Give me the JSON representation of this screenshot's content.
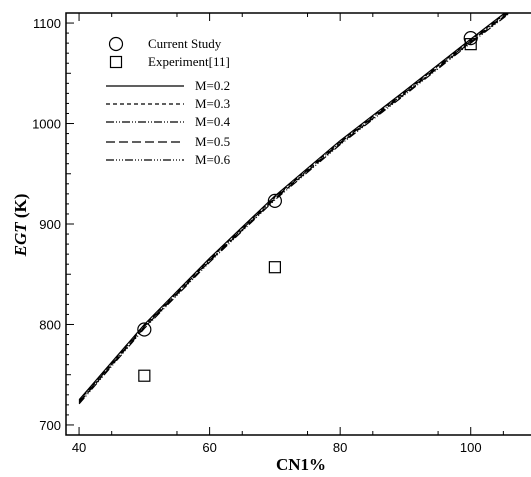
{
  "chart_data": {
    "type": "scatter",
    "xlabel": "CN1%",
    "ylabel_italic": "EGT",
    "ylabel_unit": " (K)",
    "xlim": [
      38,
      110
    ],
    "ylim": [
      690,
      1110
    ],
    "x_ticks": [
      40,
      60,
      80,
      100
    ],
    "y_ticks": [
      700,
      800,
      900,
      1000,
      1100
    ],
    "x_tick_labels": [
      "40",
      "60",
      "80",
      "100"
    ],
    "y_tick_labels": [
      "700",
      "800",
      "900",
      "1000",
      "1100"
    ],
    "grid": false,
    "legend_position": "top-left",
    "series": [
      {
        "name": "Current Study",
        "kind": "marker",
        "marker": "circle",
        "x": [
          50,
          70,
          100
        ],
        "y": [
          795,
          923,
          1085
        ]
      },
      {
        "name": "Experiment[11]",
        "kind": "marker",
        "marker": "square",
        "x": [
          50,
          70,
          100
        ],
        "y": [
          749,
          857,
          1079
        ]
      },
      {
        "name": "M=0.2",
        "kind": "line",
        "dash": "solid",
        "x": [
          40,
          50,
          60,
          70,
          80,
          90,
          100,
          106
        ],
        "y": [
          725,
          800,
          866,
          928,
          983,
          1033,
          1084,
          1114
        ]
      },
      {
        "name": "M=0.3",
        "kind": "line",
        "dash": "4,3",
        "x": [
          40,
          50,
          60,
          70,
          80,
          90,
          100,
          106
        ],
        "y": [
          724,
          799,
          865,
          927,
          982,
          1032,
          1083,
          1113
        ]
      },
      {
        "name": "M=0.4",
        "kind": "line",
        "dash": "8,2,1,2,1,2",
        "x": [
          40,
          50,
          60,
          70,
          80,
          90,
          100,
          106
        ],
        "y": [
          723,
          798,
          864,
          926,
          981,
          1031,
          1082,
          1112
        ]
      },
      {
        "name": "M=0.5",
        "kind": "line",
        "dash": "9,4",
        "x": [
          40,
          50,
          60,
          70,
          80,
          90,
          100,
          106
        ],
        "y": [
          722,
          797,
          863,
          925,
          980,
          1030,
          1081,
          1111
        ]
      },
      {
        "name": "M=0.6",
        "kind": "line",
        "dash": "8,2,1,2,1,2,1,2",
        "x": [
          40,
          50,
          60,
          70,
          80,
          90,
          100,
          106
        ],
        "y": [
          721,
          796,
          862,
          924,
          979,
          1029,
          1080,
          1110
        ]
      }
    ]
  }
}
